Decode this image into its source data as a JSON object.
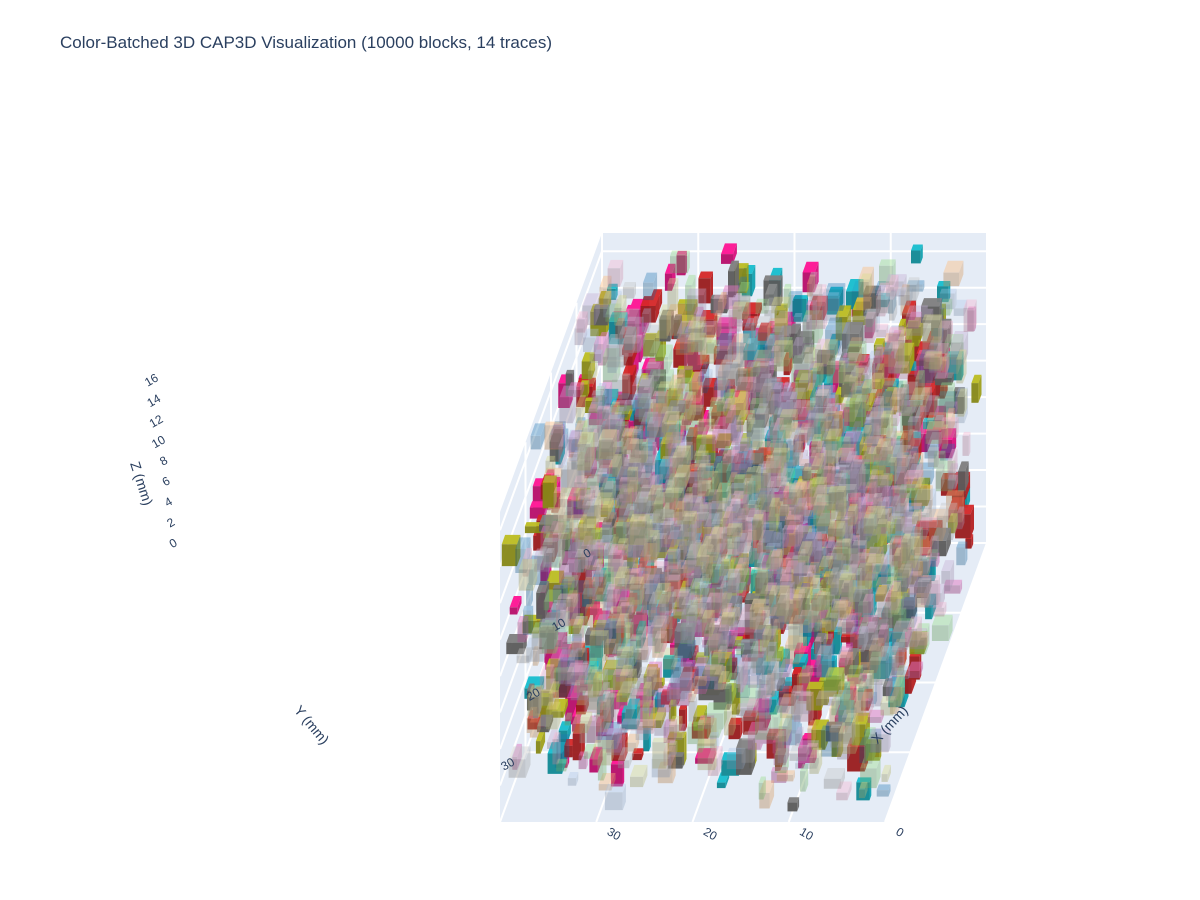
{
  "chart_data": {
    "type": "scatter3d",
    "title": "Color-Batched 3D CAP3D Visualization (10000 blocks, 14 traces)",
    "block_count": 10000,
    "trace_count": 14,
    "xaxis": {
      "label": "X (mm)",
      "range": [
        0,
        40
      ],
      "ticks": [
        "0",
        "10",
        "20",
        "30"
      ],
      "tick_values": [
        0,
        10,
        20,
        30
      ]
    },
    "yaxis": {
      "label": "Y (mm)",
      "range": [
        0,
        40
      ],
      "ticks": [
        "0",
        "10",
        "20",
        "30"
      ],
      "tick_values": [
        0,
        10,
        20,
        30
      ]
    },
    "zaxis": {
      "label": "Z (mm)",
      "range": [
        0,
        17
      ],
      "ticks": [
        "0",
        "2",
        "4",
        "6",
        "8",
        "10",
        "12",
        "14",
        "16"
      ],
      "tick_values": [
        0,
        2,
        4,
        6,
        8,
        10,
        12,
        14,
        16
      ]
    },
    "grid": true,
    "legend": "none",
    "trace_colors": [
      "#ff1493",
      "#17becf",
      "#d62728",
      "#bcbd22",
      "#7f7f7f",
      "#e377c2",
      "#1f77b4",
      "#ffbb78",
      "#98df8a",
      "#c5b0d5",
      "#aec7e8",
      "#f7b6d2",
      "#c7c7c7",
      "#dbdb8d"
    ],
    "trace_opacity": [
      0.95,
      0.95,
      0.95,
      0.95,
      0.95,
      0.5,
      0.35,
      0.4,
      0.4,
      0.4,
      0.35,
      0.4,
      0.4,
      0.4
    ]
  }
}
